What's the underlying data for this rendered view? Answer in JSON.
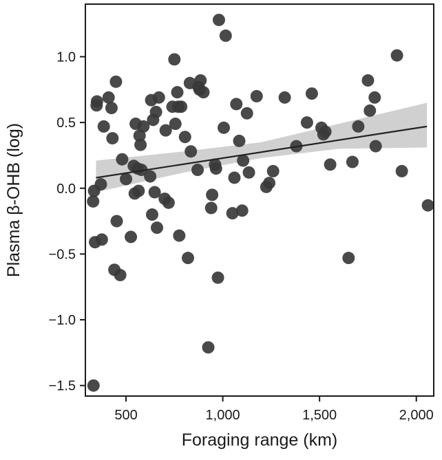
{
  "chart_data": {
    "type": "scatter",
    "xlabel": "Foraging range (km)",
    "ylabel": "Plasma β-OHB (log)",
    "xlim": [
      290,
      2090
    ],
    "ylim": [
      -1.58,
      1.4
    ],
    "xticks": [
      500,
      1000,
      1500,
      2000
    ],
    "xtick_labels": [
      "500",
      "1,000",
      "1,500",
      "2,000"
    ],
    "yticks": [
      1.0,
      0.5,
      0.0,
      -0.5,
      -1.0,
      -1.5
    ],
    "ytick_labels": [
      "1.0",
      "0.5",
      "0.0",
      "−0.5",
      "−1.0",
      "−1.5"
    ],
    "grid": false,
    "legend": "none",
    "colors": {
      "point": "#3a3a3a",
      "line": "#222222",
      "band": "#c8c8c8",
      "axis": "#1a1a1a"
    },
    "points": [
      {
        "x": 332,
        "y": -1.5
      },
      {
        "x": 330,
        "y": -0.1
      },
      {
        "x": 335,
        "y": -0.02
      },
      {
        "x": 340,
        "y": -0.41
      },
      {
        "x": 348,
        "y": 0.63
      },
      {
        "x": 350,
        "y": 0.66
      },
      {
        "x": 370,
        "y": 0.03
      },
      {
        "x": 375,
        "y": -0.39
      },
      {
        "x": 385,
        "y": 0.47
      },
      {
        "x": 410,
        "y": 0.69
      },
      {
        "x": 425,
        "y": 0.61
      },
      {
        "x": 430,
        "y": 0.38
      },
      {
        "x": 440,
        "y": -0.62
      },
      {
        "x": 448,
        "y": 0.81
      },
      {
        "x": 452,
        "y": -0.25
      },
      {
        "x": 470,
        "y": -0.66
      },
      {
        "x": 480,
        "y": 0.22
      },
      {
        "x": 500,
        "y": 0.07
      },
      {
        "x": 525,
        "y": -0.37
      },
      {
        "x": 540,
        "y": 0.17
      },
      {
        "x": 545,
        "y": -0.04
      },
      {
        "x": 550,
        "y": 0.49
      },
      {
        "x": 560,
        "y": 0.15
      },
      {
        "x": 565,
        "y": -0.02
      },
      {
        "x": 570,
        "y": 0.4
      },
      {
        "x": 575,
        "y": 0.33
      },
      {
        "x": 580,
        "y": 0.14
      },
      {
        "x": 590,
        "y": 0.47
      },
      {
        "x": 625,
        "y": 0.09
      },
      {
        "x": 630,
        "y": 0.67
      },
      {
        "x": 635,
        "y": -0.2
      },
      {
        "x": 640,
        "y": 0.52
      },
      {
        "x": 648,
        "y": -0.03
      },
      {
        "x": 655,
        "y": 0.58
      },
      {
        "x": 660,
        "y": -0.3
      },
      {
        "x": 670,
        "y": 0.69
      },
      {
        "x": 700,
        "y": -0.08
      },
      {
        "x": 705,
        "y": 0.44
      },
      {
        "x": 720,
        "y": -0.11
      },
      {
        "x": 740,
        "y": 0.62
      },
      {
        "x": 750,
        "y": 0.98
      },
      {
        "x": 755,
        "y": 0.49
      },
      {
        "x": 765,
        "y": 0.73
      },
      {
        "x": 770,
        "y": 0.62
      },
      {
        "x": 775,
        "y": -0.36
      },
      {
        "x": 785,
        "y": 0.62
      },
      {
        "x": 805,
        "y": 0.39
      },
      {
        "x": 820,
        "y": -0.53
      },
      {
        "x": 830,
        "y": 0.8
      },
      {
        "x": 835,
        "y": 0.28
      },
      {
        "x": 870,
        "y": 0.14
      },
      {
        "x": 875,
        "y": 0.77
      },
      {
        "x": 880,
        "y": 0.75
      },
      {
        "x": 885,
        "y": 0.82
      },
      {
        "x": 900,
        "y": 0.73
      },
      {
        "x": 925,
        "y": -1.21
      },
      {
        "x": 940,
        "y": -0.15
      },
      {
        "x": 945,
        "y": -0.05
      },
      {
        "x": 960,
        "y": 0.18
      },
      {
        "x": 965,
        "y": 0.15
      },
      {
        "x": 975,
        "y": -0.68
      },
      {
        "x": 980,
        "y": 1.28
      },
      {
        "x": 1005,
        "y": 0.46
      },
      {
        "x": 1015,
        "y": 1.16
      },
      {
        "x": 1050,
        "y": -0.19
      },
      {
        "x": 1060,
        "y": 0.08
      },
      {
        "x": 1070,
        "y": 0.64
      },
      {
        "x": 1085,
        "y": 0.36
      },
      {
        "x": 1100,
        "y": -0.17
      },
      {
        "x": 1105,
        "y": 0.21
      },
      {
        "x": 1125,
        "y": 0.57
      },
      {
        "x": 1135,
        "y": 0.12
      },
      {
        "x": 1175,
        "y": 0.7
      },
      {
        "x": 1225,
        "y": 0.01
      },
      {
        "x": 1240,
        "y": 0.04
      },
      {
        "x": 1260,
        "y": 0.13
      },
      {
        "x": 1320,
        "y": 0.69
      },
      {
        "x": 1380,
        "y": 0.32
      },
      {
        "x": 1435,
        "y": 0.5
      },
      {
        "x": 1460,
        "y": 0.72
      },
      {
        "x": 1510,
        "y": 0.46
      },
      {
        "x": 1520,
        "y": 0.41
      },
      {
        "x": 1530,
        "y": 0.43
      },
      {
        "x": 1555,
        "y": 0.18
      },
      {
        "x": 1650,
        "y": -0.53
      },
      {
        "x": 1670,
        "y": 0.2
      },
      {
        "x": 1700,
        "y": 0.47
      },
      {
        "x": 1750,
        "y": 0.82
      },
      {
        "x": 1760,
        "y": 0.59
      },
      {
        "x": 1785,
        "y": 0.69
      },
      {
        "x": 1790,
        "y": 0.32
      },
      {
        "x": 1900,
        "y": 1.01
      },
      {
        "x": 1925,
        "y": 0.13
      },
      {
        "x": 2060,
        "y": -0.13
      }
    ],
    "regression": {
      "x": [
        345,
        2055
      ],
      "y": [
        0.08,
        0.47
      ]
    },
    "confidence_band": {
      "x": [
        345,
        800,
        1200,
        1600,
        2055
      ],
      "lower": [
        -0.03,
        0.12,
        0.23,
        0.3,
        0.31
      ],
      "upper": [
        0.21,
        0.28,
        0.35,
        0.49,
        0.65
      ]
    }
  }
}
